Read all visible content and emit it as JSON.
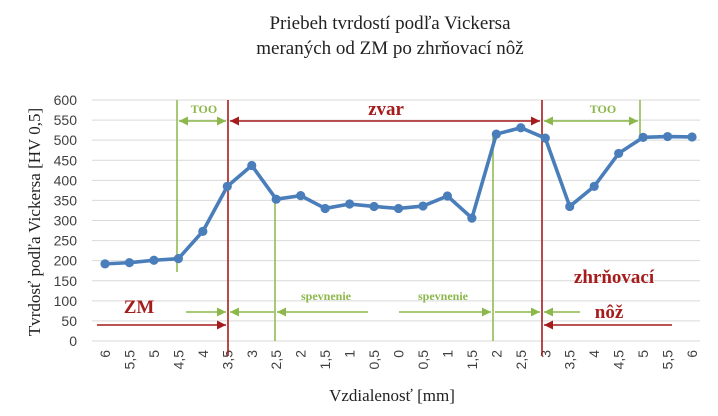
{
  "colors": {
    "series": "#4a7ebb",
    "grid": "#d9d9d9",
    "red": "#a61c1c",
    "green": "#8cb84b",
    "text": "#404040"
  },
  "chart_data": {
    "type": "line",
    "title": [
      "Priebeh tvrdostí podľa Vickersa",
      "meraných od ZM po zhrňovací nôž"
    ],
    "xlabel": "Vzdialenosť [mm]",
    "ylabel": "Tvrdosť podľa Vickersa [HV 0,5]",
    "ylim": [
      0,
      600
    ],
    "yticks": [
      0,
      50,
      100,
      150,
      200,
      250,
      300,
      350,
      400,
      450,
      500,
      550,
      600
    ],
    "grid": true,
    "legend": "none",
    "categories": [
      "6",
      "5,5",
      "5",
      "4,5",
      "4",
      "3,5",
      "3",
      "2,5",
      "2",
      "1,5",
      "1",
      "0,5",
      "0",
      "0,5",
      "1",
      "1,5",
      "2",
      "2,5",
      "3",
      "3,5",
      "4",
      "4,5",
      "5",
      "5,5",
      "6"
    ],
    "series": [
      {
        "values": [
          192,
          195,
          201,
          205,
          273,
          385,
          437,
          353,
          362,
          330,
          341,
          335,
          330,
          336,
          361,
          306,
          515,
          531,
          505,
          335,
          385,
          467,
          507,
          509,
          508
        ]
      }
    ],
    "annotations": {
      "zm": "ZM",
      "zvar": "zvar",
      "too_left": "TOO",
      "too_right": "TOO",
      "spevnenie_left": "spevnenie",
      "spevnenie_right": "spevnenie",
      "zhrnovaci": "zhrňovací",
      "noz": "nôž"
    }
  }
}
